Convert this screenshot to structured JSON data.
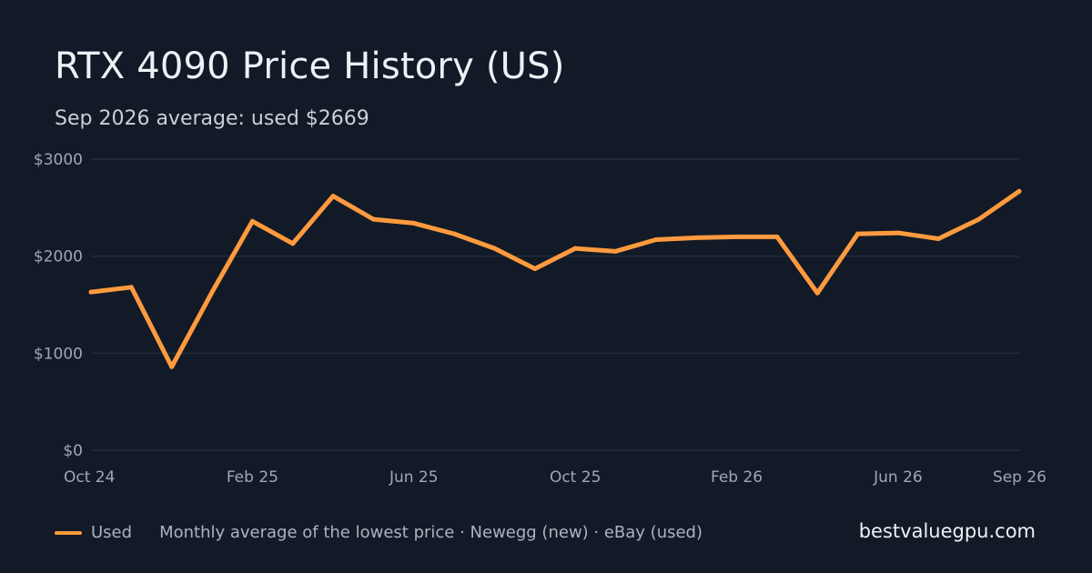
{
  "header": {
    "title": "RTX 4090 Price History (US)",
    "subtitle": "Sep 2026 average: used $2669"
  },
  "footer": {
    "legend_label": "Used",
    "note": "Monthly average of the lowest price · Newegg (new) · eBay (used)",
    "site": "bestvaluegpu.com"
  },
  "colors": {
    "background": "#121a27",
    "used_line": "#ff9a3e",
    "grid": "#253142",
    "tick_text": "#9ea8b5"
  },
  "chart_data": {
    "type": "line",
    "title": "RTX 4090 Price History (US)",
    "subtitle": "Sep 2026 average: used $2669",
    "x": [
      "2024-10",
      "2024-11",
      "2024-12",
      "2025-01",
      "2025-02",
      "2025-03",
      "2025-04",
      "2025-05",
      "2025-06",
      "2025-07",
      "2025-08",
      "2025-09",
      "2025-10",
      "2025-11",
      "2025-12",
      "2026-01",
      "2026-02",
      "2026-03",
      "2026-04",
      "2026-05",
      "2026-06",
      "2026-07",
      "2026-08",
      "2026-09"
    ],
    "series": [
      {
        "name": "Used",
        "color": "#ff9a3e",
        "values": [
          1630,
          1680,
          860,
          1630,
          2360,
          2130,
          2620,
          2380,
          2340,
          2230,
          2080,
          1870,
          2080,
          2050,
          2170,
          2190,
          2200,
          2200,
          1620,
          2230,
          2240,
          2180,
          2380,
          2669
        ]
      }
    ],
    "x_ticks": [
      {
        "value": "2024-10",
        "label": "Oct 24"
      },
      {
        "value": "2025-02",
        "label": "Feb 25"
      },
      {
        "value": "2025-06",
        "label": "Jun 25"
      },
      {
        "value": "2025-10",
        "label": "Oct 25"
      },
      {
        "value": "2026-02",
        "label": "Feb 26"
      },
      {
        "value": "2026-06",
        "label": "Jun 26"
      },
      {
        "value": "2026-09",
        "label": "Sep 26"
      }
    ],
    "y_ticks": [
      {
        "value": 0,
        "label": "$0"
      },
      {
        "value": 1000,
        "label": "$1000"
      },
      {
        "value": 2000,
        "label": "$2000"
      },
      {
        "value": 3000,
        "label": "$3000"
      }
    ],
    "ylim": [
      0,
      3000
    ],
    "grid": true,
    "legend_position": "bottom-left"
  }
}
